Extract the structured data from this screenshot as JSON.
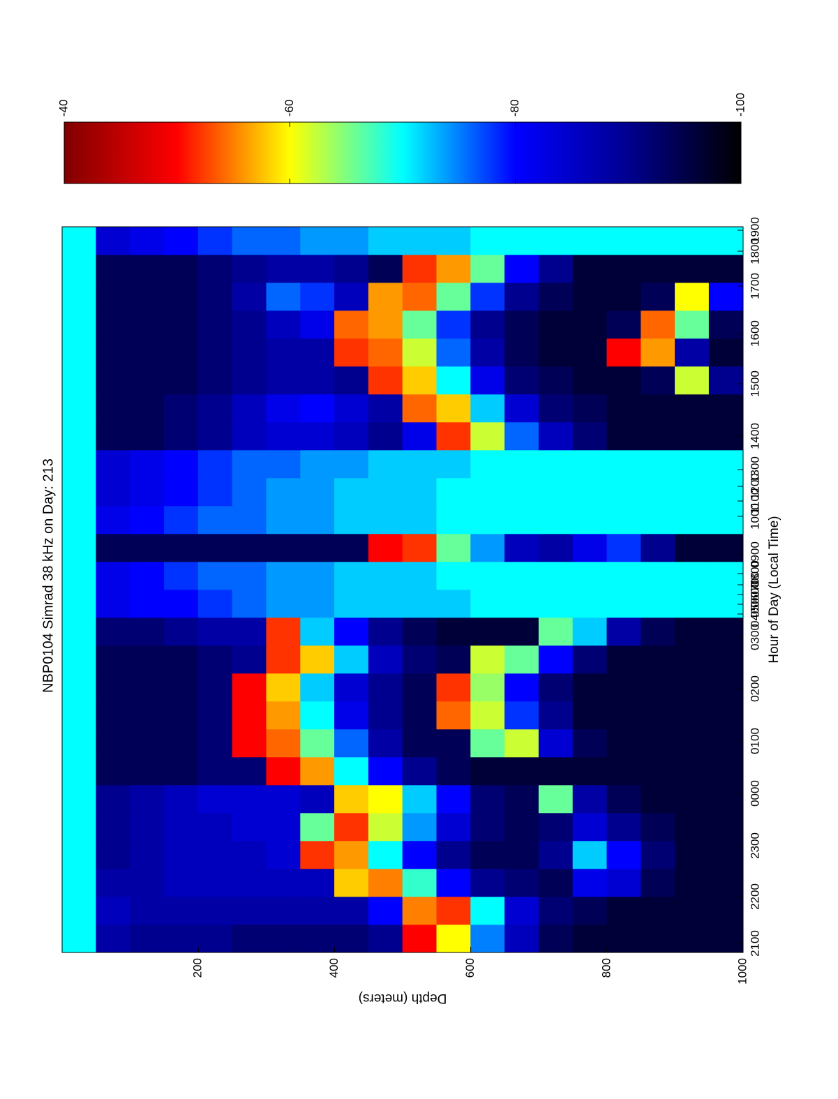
{
  "chart_data": {
    "type": "heatmap",
    "title": "NBP0104 Simrad 38 kHz on Day:  213",
    "xlabel": "Hour of Day (Local Time)",
    "ylabel": "Depth (meters)",
    "xlim": [
      0,
      1040
    ],
    "xticks": [
      {
        "value": 13,
        "label": "2100"
      },
      {
        "value": 80,
        "label": "2200"
      },
      {
        "value": 153,
        "label": "2300"
      },
      {
        "value": 228,
        "label": "0000"
      },
      {
        "value": 303,
        "label": "0100"
      },
      {
        "value": 378,
        "label": "0200"
      },
      {
        "value": 452,
        "label": "0300"
      },
      {
        "value": 485,
        "label": "0400"
      },
      {
        "value": 499,
        "label": "0500"
      },
      {
        "value": 513,
        "label": "0600"
      },
      {
        "value": 527,
        "label": "0700"
      },
      {
        "value": 543,
        "label": "0800"
      },
      {
        "value": 570,
        "label": "0900"
      },
      {
        "value": 625,
        "label": "1000"
      },
      {
        "value": 647,
        "label": "1100"
      },
      {
        "value": 668,
        "label": "1200"
      },
      {
        "value": 692,
        "label": "1300"
      },
      {
        "value": 740,
        "label": "1400"
      },
      {
        "value": 815,
        "label": "1500"
      },
      {
        "value": 887,
        "label": "1600"
      },
      {
        "value": 955,
        "label": "1700"
      },
      {
        "value": 1005,
        "label": "1800"
      },
      {
        "value": 1035,
        "label": "1900"
      }
    ],
    "ylim": [
      0,
      1000
    ],
    "yticks": [
      200,
      400,
      600,
      800,
      1000
    ],
    "xbins": [
      0,
      40,
      80,
      120,
      160,
      200,
      240,
      280,
      320,
      360,
      400,
      440,
      480,
      520,
      560,
      600,
      640,
      680,
      720,
      760,
      800,
      840,
      880,
      920,
      960,
      1000,
      1040
    ],
    "ybins": [
      0,
      50,
      100,
      150,
      200,
      250,
      300,
      350,
      400,
      450,
      500,
      550,
      600,
      650,
      700,
      750,
      800,
      850,
      900,
      950,
      1000
    ],
    "z": [
      [
        -70,
        -88,
        -90,
        -90,
        -90,
        -92,
        -92,
        -92,
        -92,
        -90,
        -50,
        -60,
        -75,
        -86,
        -94,
        -96,
        -96,
        -96,
        -96,
        -96
      ],
      [
        -70,
        -86,
        -88,
        -88,
        -88,
        -88,
        -88,
        -88,
        -88,
        -80,
        -55,
        -52,
        -70,
        -84,
        -92,
        -94,
        -96,
        -96,
        -96,
        -96
      ],
      [
        -70,
        -88,
        -88,
        -86,
        -86,
        -86,
        -86,
        -86,
        -58,
        -55,
        -68,
        -80,
        -90,
        -92,
        -94,
        -82,
        -84,
        -94,
        -96,
        -96
      ],
      [
        -70,
        -90,
        -88,
        -86,
        -86,
        -86,
        -84,
        -52,
        -56,
        -70,
        -80,
        -90,
        -94,
        -94,
        -90,
        -72,
        -80,
        -92,
        -96,
        -96
      ],
      [
        -70,
        -90,
        -88,
        -86,
        -86,
        -84,
        -84,
        -66,
        -52,
        -62,
        -74,
        -84,
        -92,
        -94,
        -92,
        -84,
        -90,
        -94,
        -96,
        -96
      ],
      [
        -70,
        -90,
        -88,
        -86,
        -84,
        -84,
        -84,
        -86,
        -58,
        -60,
        -72,
        -80,
        -92,
        -94,
        -66,
        -88,
        -94,
        -96,
        -96,
        -96
      ],
      [
        -70,
        -94,
        -94,
        -94,
        -92,
        -92,
        -50,
        -56,
        -70,
        -80,
        -90,
        -94,
        -96,
        -96,
        -96,
        -96,
        -96,
        -96,
        -96,
        -96
      ],
      [
        -70,
        -94,
        -94,
        -94,
        -92,
        -50,
        -54,
        -66,
        -76,
        -88,
        -94,
        -94,
        -66,
        -62,
        -84,
        -94,
        -96,
        -96,
        -96,
        -96
      ],
      [
        -70,
        -94,
        -94,
        -94,
        -92,
        -50,
        -56,
        -70,
        -82,
        -90,
        -94,
        -54,
        -62,
        -78,
        -90,
        -96,
        -96,
        -96,
        -96,
        -96
      ],
      [
        -70,
        -94,
        -94,
        -94,
        -92,
        -50,
        -58,
        -72,
        -84,
        -90,
        -94,
        -52,
        -64,
        -80,
        -92,
        -96,
        -96,
        -96,
        -96,
        -96
      ],
      [
        -70,
        -94,
        -94,
        -94,
        -92,
        -90,
        -52,
        -58,
        -72,
        -86,
        -92,
        -94,
        -62,
        -66,
        -80,
        -92,
        -96,
        -96,
        -96,
        -96
      ],
      [
        -70,
        -92,
        -92,
        -90,
        -88,
        -88,
        -52,
        -72,
        -80,
        -90,
        -94,
        -96,
        -96,
        -96,
        -66,
        -72,
        -88,
        -94,
        -96,
        -96
      ],
      [
        -70,
        -82,
        -80,
        -80,
        -78,
        -76,
        -74,
        -74,
        -72,
        -72,
        -72,
        -72,
        -70,
        -70,
        -70,
        -70,
        -70,
        -70,
        -70,
        -70
      ],
      [
        -70,
        -82,
        -80,
        -78,
        -76,
        -76,
        -74,
        -74,
        -72,
        -72,
        -72,
        -70,
        -70,
        -70,
        -70,
        -70,
        -70,
        -70,
        -70,
        -70
      ],
      [
        -70,
        -94,
        -94,
        -94,
        -94,
        -94,
        -94,
        -94,
        -94,
        -50,
        -52,
        -66,
        -74,
        -86,
        -88,
        -82,
        -78,
        -90,
        -96,
        -96
      ],
      [
        -70,
        -82,
        -80,
        -78,
        -76,
        -76,
        -74,
        -74,
        -72,
        -72,
        -72,
        -70,
        -70,
        -70,
        -70,
        -70,
        -70,
        -70,
        -70,
        -70
      ],
      [
        -70,
        -84,
        -82,
        -80,
        -78,
        -76,
        -74,
        -74,
        -72,
        -72,
        -72,
        -70,
        -70,
        -70,
        -70,
        -70,
        -70,
        -70,
        -70,
        -70
      ],
      [
        -70,
        -84,
        -82,
        -80,
        -78,
        -76,
        -76,
        -74,
        -74,
        -72,
        -72,
        -72,
        -70,
        -70,
        -70,
        -70,
        -70,
        -70,
        -70,
        -70
      ],
      [
        -70,
        -94,
        -94,
        -92,
        -90,
        -86,
        -84,
        -84,
        -86,
        -90,
        -82,
        -52,
        -62,
        -76,
        -86,
        -92,
        -96,
        -96,
        -96,
        -96
      ],
      [
        -70,
        -94,
        -94,
        -92,
        -90,
        -86,
        -82,
        -80,
        -84,
        -88,
        -54,
        -58,
        -72,
        -84,
        -92,
        -94,
        -96,
        -96,
        -96,
        -96
      ],
      [
        -70,
        -94,
        -94,
        -94,
        -92,
        -90,
        -88,
        -88,
        -90,
        -52,
        -58,
        -70,
        -82,
        -92,
        -94,
        -96,
        -96,
        -94,
        -62,
        -90
      ],
      [
        -70,
        -94,
        -94,
        -94,
        -92,
        -90,
        -88,
        -88,
        -52,
        -54,
        -62,
        -76,
        -88,
        -94,
        -96,
        -96,
        -50,
        -56,
        -88,
        -96
      ],
      [
        -70,
        -94,
        -94,
        -94,
        -92,
        -90,
        -86,
        -82,
        -54,
        -56,
        -66,
        -78,
        -90,
        -94,
        -96,
        -96,
        -94,
        -54,
        -66,
        -94
      ],
      [
        -70,
        -94,
        -94,
        -94,
        -92,
        -88,
        -76,
        -78,
        -86,
        -56,
        -54,
        -66,
        -78,
        -90,
        -94,
        -96,
        -96,
        -94,
        -60,
        -80
      ],
      [
        -70,
        -94,
        -94,
        -94,
        -92,
        -90,
        -88,
        -88,
        -90,
        -94,
        -52,
        -56,
        -66,
        -80,
        -90,
        -96,
        -96,
        -96,
        -96,
        -96
      ],
      [
        -70,
        -84,
        -82,
        -80,
        -78,
        -76,
        -76,
        -74,
        -74,
        -72,
        -72,
        -72,
        -70,
        -70,
        -70,
        -70,
        -70,
        -70,
        -70,
        -70
      ]
    ],
    "clim": [
      -100,
      -40
    ],
    "cbticks": [
      -40,
      -60,
      -80,
      -100
    ],
    "colormap": [
      "#000000",
      "#00008f",
      "#0000ff",
      "#00ffff",
      "#ffff00",
      "#ff0000",
      "#800000"
    ]
  }
}
